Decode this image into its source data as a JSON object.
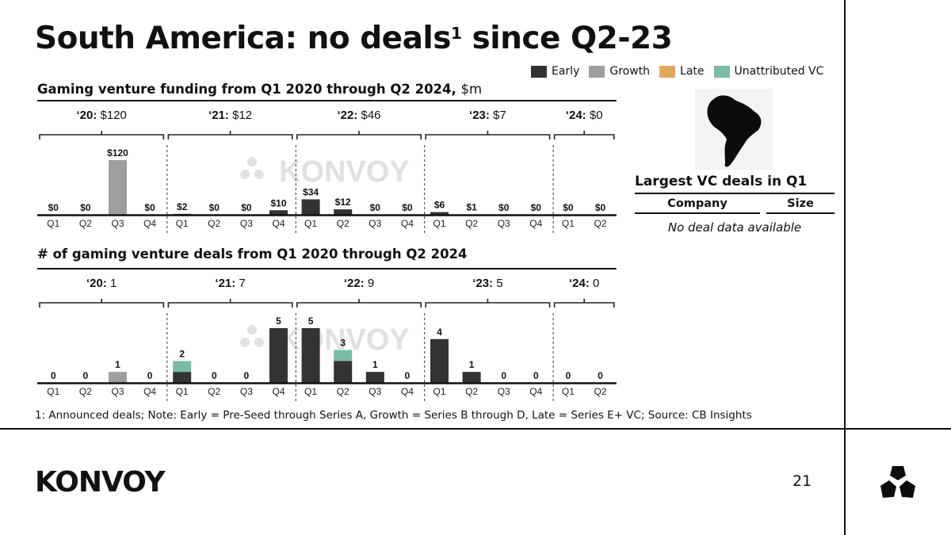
{
  "slide": {
    "title_main": "South America: no deals",
    "title_sup": "1",
    "title_end": " since Q2-23",
    "page_number": "21",
    "footnote": "1: Announced deals; Note: Early = Pre-Seed through Series A, Growth = Series B through D, Late = Series E+ VC; Source: CB Insights",
    "logo_text": "KONVOY",
    "watermark_text": "KONVOY",
    "logo_mark_icon": "konvoy-triangle-mark-icon",
    "region_icon": "south-america-map-icon"
  },
  "legend": [
    {
      "label": "Early",
      "color": "#333333"
    },
    {
      "label": "Growth",
      "color": "#9e9e9e"
    },
    {
      "label": "Late",
      "color": "#e0a85a"
    },
    {
      "label": "Unattributed VC",
      "color": "#79bba5"
    }
  ],
  "chart_data": [
    {
      "type": "bar",
      "stacked": true,
      "title": "Gaming venture funding from Q1 2020 through Q2 2024,",
      "title_unit": "$m",
      "categories": [
        "Q1",
        "Q2",
        "Q3",
        "Q4",
        "Q1",
        "Q2",
        "Q3",
        "Q4",
        "Q1",
        "Q2",
        "Q3",
        "Q4",
        "Q1",
        "Q2",
        "Q3",
        "Q4",
        "Q1",
        "Q2"
      ],
      "years": [
        {
          "label": "‘20:",
          "total": "$120",
          "quarters": 4
        },
        {
          "label": "‘21:",
          "total": "$12",
          "quarters": 4
        },
        {
          "label": "‘22:",
          "total": "$46",
          "quarters": 4
        },
        {
          "label": "‘23:",
          "total": "$7",
          "quarters": 4
        },
        {
          "label": "‘24:",
          "total": "$0",
          "quarters": 2
        }
      ],
      "series": [
        {
          "name": "Early",
          "values": [
            0,
            0,
            0,
            0,
            2,
            0,
            0,
            10,
            34,
            12,
            0,
            0,
            6,
            1,
            0,
            0,
            0,
            0
          ]
        },
        {
          "name": "Growth",
          "values": [
            0,
            0,
            120,
            0,
            0,
            0,
            0,
            0,
            0,
            0,
            0,
            0,
            0,
            0,
            0,
            0,
            0,
            0
          ]
        },
        {
          "name": "Late",
          "values": [
            0,
            0,
            0,
            0,
            0,
            0,
            0,
            0,
            0,
            0,
            0,
            0,
            0,
            0,
            0,
            0,
            0,
            0
          ]
        },
        {
          "name": "Unattributed VC",
          "values": [
            0,
            0,
            0,
            0,
            0,
            0,
            0,
            0,
            0,
            0,
            0,
            0,
            0,
            0,
            0,
            0,
            0,
            0
          ]
        }
      ],
      "data_labels": [
        "$0",
        "$0",
        "$120",
        "$0",
        "$2",
        "$0",
        "$0",
        "$10",
        "$34",
        "$12",
        "$0",
        "$0",
        "$6",
        "$1",
        "$0",
        "$0",
        "$0",
        "$0"
      ],
      "ylim": [
        0,
        120
      ]
    },
    {
      "type": "bar",
      "stacked": true,
      "title": "# of gaming venture deals from Q1 2020 through Q2 2024",
      "categories": [
        "Q1",
        "Q2",
        "Q3",
        "Q4",
        "Q1",
        "Q2",
        "Q3",
        "Q4",
        "Q1",
        "Q2",
        "Q3",
        "Q4",
        "Q1",
        "Q2",
        "Q3",
        "Q4",
        "Q1",
        "Q2"
      ],
      "years": [
        {
          "label": "‘20:",
          "total": "1",
          "quarters": 4
        },
        {
          "label": "‘21:",
          "total": "7",
          "quarters": 4
        },
        {
          "label": "‘22:",
          "total": "9",
          "quarters": 4
        },
        {
          "label": "‘23:",
          "total": "5",
          "quarters": 4
        },
        {
          "label": "‘24:",
          "total": "0",
          "quarters": 2
        }
      ],
      "series": [
        {
          "name": "Early",
          "values": [
            0,
            0,
            0,
            0,
            1,
            0,
            0,
            5,
            5,
            2,
            1,
            0,
            4,
            1,
            0,
            0,
            0,
            0
          ]
        },
        {
          "name": "Growth",
          "values": [
            0,
            0,
            1,
            0,
            0,
            0,
            0,
            0,
            0,
            0,
            0,
            0,
            0,
            0,
            0,
            0,
            0,
            0
          ]
        },
        {
          "name": "Late",
          "values": [
            0,
            0,
            0,
            0,
            0,
            0,
            0,
            0,
            0,
            0,
            0,
            0,
            0,
            0,
            0,
            0,
            0,
            0
          ]
        },
        {
          "name": "Unattributed VC",
          "values": [
            0,
            0,
            0,
            0,
            1,
            0,
            0,
            0,
            0,
            1,
            0,
            0,
            0,
            0,
            0,
            0,
            0,
            0
          ]
        }
      ],
      "data_labels": [
        "0",
        "0",
        "1",
        "0",
        "2",
        "0",
        "0",
        "5",
        "5",
        "3",
        "1",
        "0",
        "4",
        "1",
        "0",
        "0",
        "0",
        "0"
      ],
      "ylim": [
        0,
        5
      ]
    }
  ],
  "largest_deals": {
    "title": "Largest VC deals in Q1",
    "columns": [
      "Company",
      "Size"
    ],
    "empty_message": "No deal data available"
  }
}
